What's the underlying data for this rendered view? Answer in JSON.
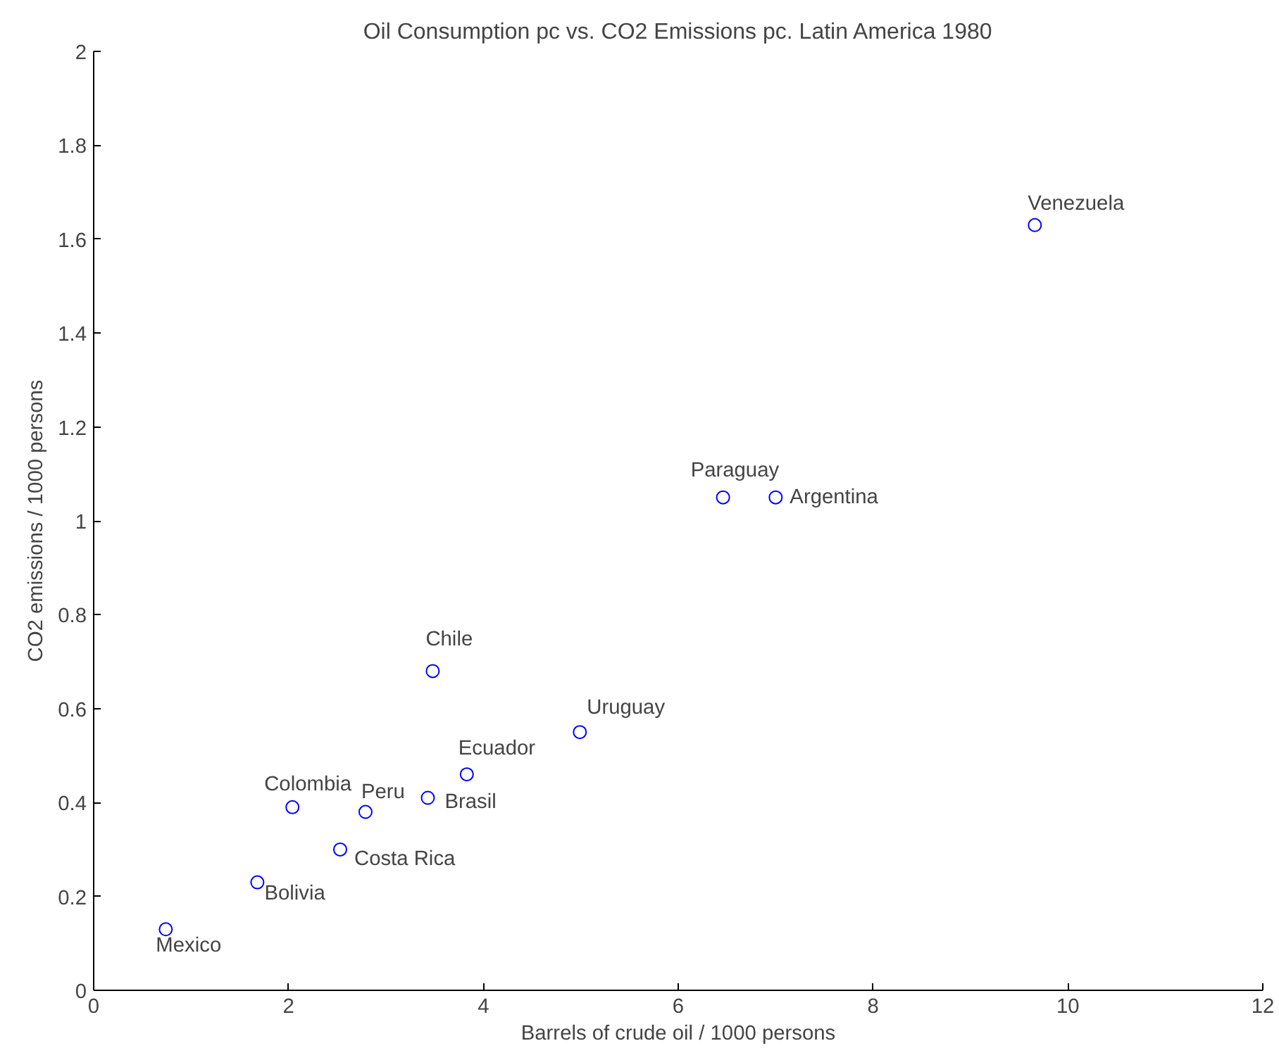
{
  "chart_data": {
    "type": "scatter",
    "title": "Oil Consumption pc vs. CO2 Emissions pc. Latin America 1980",
    "xlabel": "Barrels of crude oil / 1000 persons",
    "ylabel": "CO2 emissions / 1000 persons",
    "x": [
      9.66,
      6.46,
      7.0,
      3.48,
      4.99,
      3.83,
      3.43,
      2.79,
      2.04,
      2.53,
      1.68,
      0.74
    ],
    "series": [
      {
        "color": "#0000ff",
        "values": [
          1.63,
          1.05,
          1.05,
          0.68,
          0.55,
          0.46,
          0.41,
          0.38,
          0.39,
          0.3,
          0.23,
          0.13
        ]
      }
    ],
    "annotations": [
      {
        "text": "Venezuela",
        "x": 9.66,
        "y": 1.63
      },
      {
        "text": "Paraguay",
        "x": 6.46,
        "y": 1.05
      },
      {
        "text": "Argentina",
        "x": 7.0,
        "y": 1.05
      },
      {
        "text": "Chile",
        "x": 3.48,
        "y": 0.68
      },
      {
        "text": "Uruguay",
        "x": 4.99,
        "y": 0.55
      },
      {
        "text": "Ecuador",
        "x": 3.83,
        "y": 0.46
      },
      {
        "text": "Brasil",
        "x": 3.43,
        "y": 0.41
      },
      {
        "text": "Peru",
        "x": 2.79,
        "y": 0.38
      },
      {
        "text": "Colombia",
        "x": 2.04,
        "y": 0.39
      },
      {
        "text": "Costa Rica",
        "x": 2.53,
        "y": 0.3
      },
      {
        "text": "Bolivia",
        "x": 1.68,
        "y": 0.23
      },
      {
        "text": "Mexico",
        "x": 0.74,
        "y": 0.13
      }
    ],
    "xlim": [
      0,
      12
    ],
    "ylim": [
      0,
      2
    ],
    "xticks": [
      0,
      2,
      4,
      6,
      8,
      10,
      12
    ],
    "yticks": [
      0,
      0.2,
      0.4,
      0.6,
      0.8,
      1,
      1.2,
      1.4,
      1.6,
      1.8,
      2
    ],
    "grid": false,
    "marker": "circle"
  }
}
